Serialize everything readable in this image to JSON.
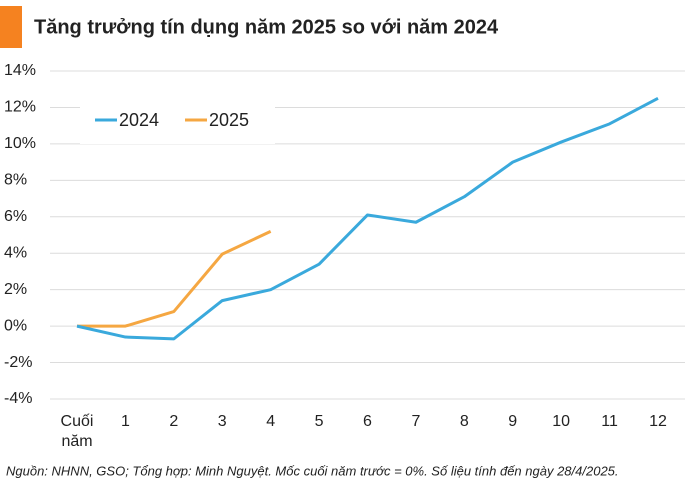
{
  "chart_data": {
    "type": "line",
    "title": "Tăng trưởng tín dụng năm 2025 so với năm 2024",
    "categories": [
      "Cuối năm",
      "1",
      "2",
      "3",
      "4",
      "5",
      "6",
      "7",
      "8",
      "9",
      "10",
      "11",
      "12"
    ],
    "series": [
      {
        "name": "2024",
        "color": "#3aa9dc",
        "values": [
          0,
          -0.6,
          -0.7,
          1.4,
          2.0,
          3.4,
          6.1,
          5.7,
          7.1,
          9.0,
          10.1,
          11.1,
          12.5
        ]
      },
      {
        "name": "2025",
        "color": "#f5a742",
        "values": [
          0,
          0,
          0.8,
          3.95,
          5.2,
          null,
          null,
          null,
          null,
          null,
          null,
          null,
          null
        ]
      }
    ],
    "ylim": [
      -4,
      14
    ],
    "yticks": [
      {
        "value": -4,
        "label": "-4%"
      },
      {
        "value": -2,
        "label": "-2%"
      },
      {
        "value": 0,
        "label": "0%"
      },
      {
        "value": 2,
        "label": "2%"
      },
      {
        "value": 4,
        "label": "4%"
      },
      {
        "value": 6,
        "label": "6%"
      },
      {
        "value": 8,
        "label": "8%"
      },
      {
        "value": 10,
        "label": "10%"
      },
      {
        "value": 12,
        "label": "12%"
      },
      {
        "value": 14,
        "label": "14%"
      }
    ],
    "grid": true,
    "legend": "upper left",
    "note": "Nguồn: NHNN, GSO; Tổng hợp: Minh Nguyệt. Mốc cuối năm trước = 0%.  Số liệu tính đến ngày 28/4/2025."
  }
}
